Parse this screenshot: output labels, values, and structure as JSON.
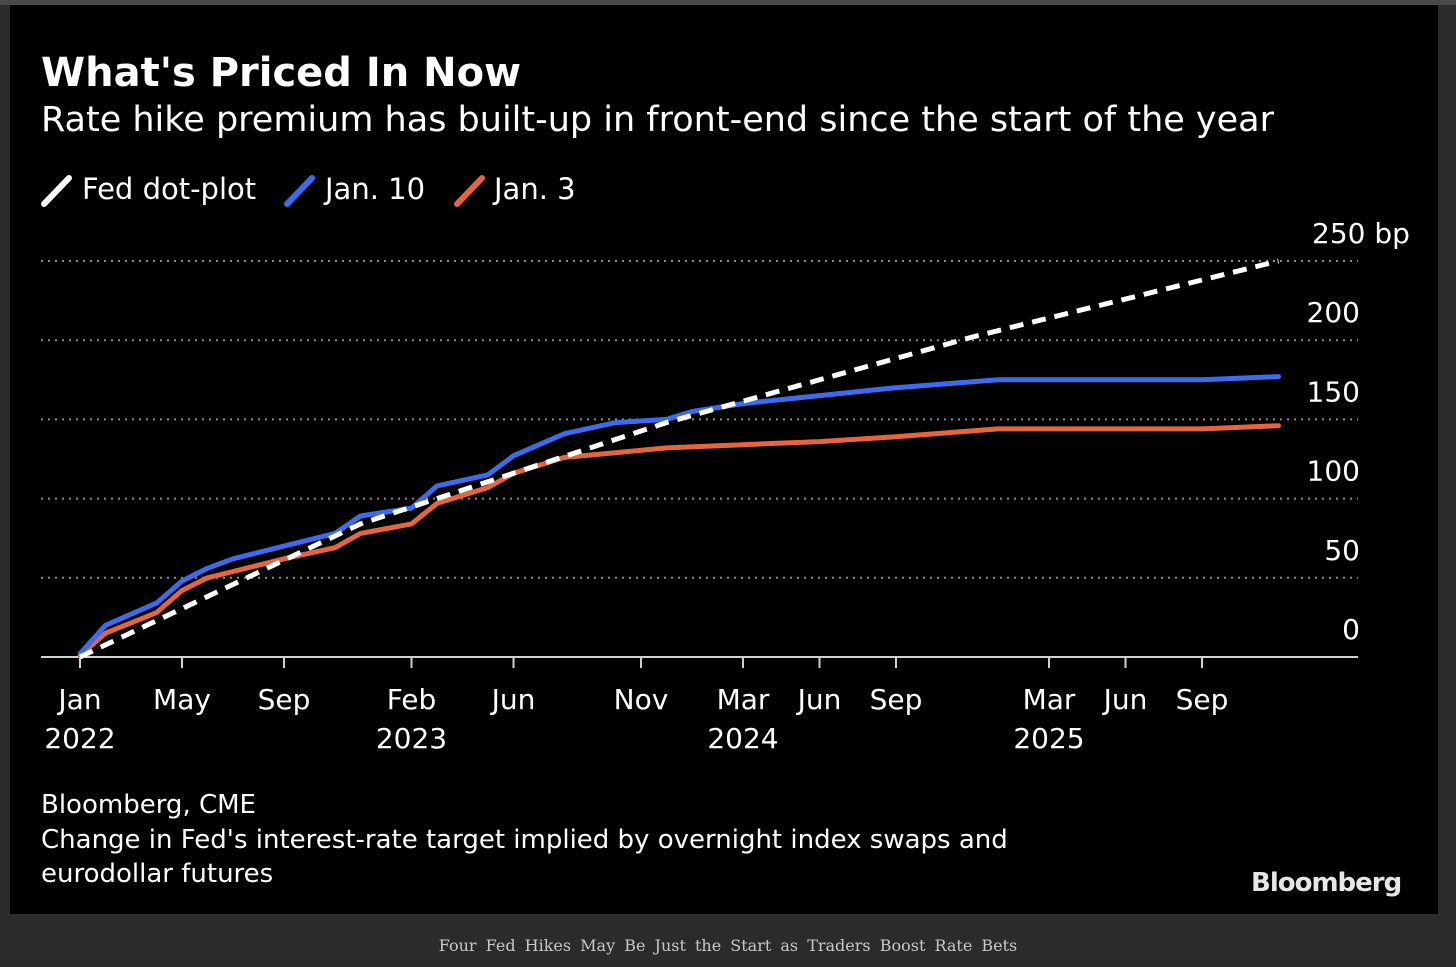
{
  "page": {
    "caption": "Four Fed Hikes May Be Just the Start as Traders Boost Rate Bets"
  },
  "chart_data": {
    "type": "line",
    "title": "What's Priced In Now",
    "subtitle": "Rate hike premium has built-up in front-end since the start of the year",
    "ylabel": "",
    "y_unit": "bp",
    "xlabel": "",
    "ylim": [
      0,
      250
    ],
    "y_ticks": [
      0,
      50,
      100,
      150,
      200,
      250
    ],
    "y_tick_labels": [
      "0",
      "50",
      "100",
      "150",
      "200",
      "250 bp"
    ],
    "xlim": [
      "2022-01",
      "2025-12"
    ],
    "x_ticks": [
      {
        "date": "2022-01",
        "month": "Jan",
        "year": "2022"
      },
      {
        "date": "2022-05",
        "month": "May",
        "year": ""
      },
      {
        "date": "2022-09",
        "month": "Sep",
        "year": ""
      },
      {
        "date": "2023-02",
        "month": "Feb",
        "year": "2023"
      },
      {
        "date": "2023-06",
        "month": "Jun",
        "year": ""
      },
      {
        "date": "2023-11",
        "month": "Nov",
        "year": ""
      },
      {
        "date": "2024-03",
        "month": "Mar",
        "year": "2024"
      },
      {
        "date": "2024-06",
        "month": "Jun",
        "year": ""
      },
      {
        "date": "2024-09",
        "month": "Sep",
        "year": ""
      },
      {
        "date": "2025-03",
        "month": "Mar",
        "year": "2025"
      },
      {
        "date": "2025-06",
        "month": "Jun",
        "year": ""
      },
      {
        "date": "2025-09",
        "month": "Sep",
        "year": ""
      }
    ],
    "grid": true,
    "legend_position": "top-left",
    "series": [
      {
        "name": "Fed dot-plot",
        "color": "#ffffff",
        "style": "dashed",
        "x": [
          "2022-01",
          "2022-12",
          "2023-12",
          "2024-12",
          "2025-12"
        ],
        "y": [
          0,
          84,
          148,
          202,
          250
        ]
      },
      {
        "name": "Jan. 10",
        "color": "#3b6cf0",
        "style": "solid",
        "x": [
          "2022-01",
          "2022-02",
          "2022-04",
          "2022-05",
          "2022-06",
          "2022-07",
          "2022-09",
          "2022-11",
          "2022-12",
          "2023-02",
          "2023-03",
          "2023-05",
          "2023-06",
          "2023-08",
          "2023-10",
          "2023-12",
          "2024-01",
          "2024-03",
          "2024-06",
          "2024-09",
          "2025-01",
          "2025-03",
          "2025-06",
          "2025-09",
          "2025-12"
        ],
        "y": [
          2,
          20,
          34,
          48,
          56,
          62,
          70,
          78,
          89,
          94,
          108,
          115,
          127,
          141,
          148,
          150,
          155,
          160,
          165,
          170,
          175,
          175,
          175,
          175,
          177
        ]
      },
      {
        "name": "Jan. 3",
        "color": "#e8643c",
        "style": "solid",
        "x": [
          "2022-01",
          "2022-02",
          "2022-04",
          "2022-05",
          "2022-06",
          "2022-07",
          "2022-09",
          "2022-11",
          "2022-12",
          "2023-02",
          "2023-03",
          "2023-05",
          "2023-06",
          "2023-08",
          "2023-10",
          "2023-12",
          "2024-03",
          "2024-06",
          "2024-09",
          "2025-01",
          "2025-03",
          "2025-06",
          "2025-09",
          "2025-12"
        ],
        "y": [
          1,
          15,
          28,
          42,
          50,
          54,
          62,
          69,
          78,
          84,
          97,
          107,
          116,
          126,
          129,
          132,
          134,
          136,
          139,
          144,
          144,
          144,
          144,
          146
        ]
      }
    ]
  },
  "footer": {
    "source": "Bloomberg, CME",
    "note": "Change in Fed's interest-rate target implied by overnight index swaps and eurodollar futures",
    "brand": "Bloomberg"
  }
}
